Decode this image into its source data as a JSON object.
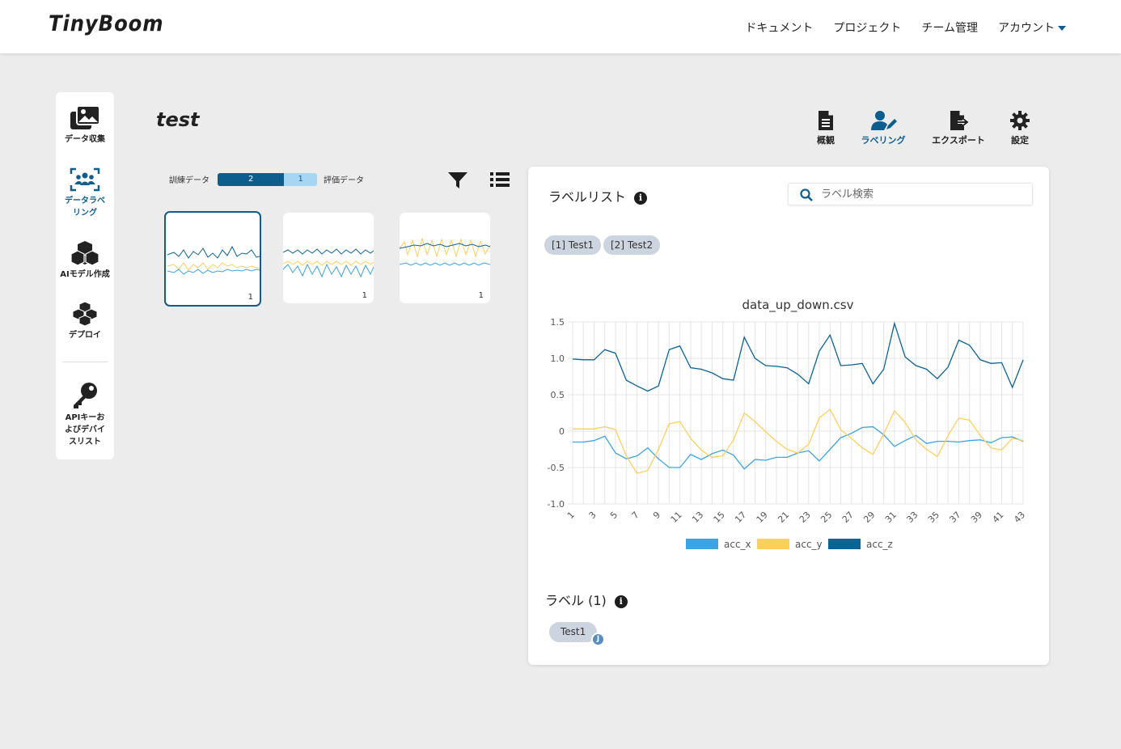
{
  "header": {
    "logo": "TinyBoom",
    "nav": [
      "ドキュメント",
      "プロジェクト",
      "チーム管理",
      "アカウント"
    ]
  },
  "sidebar": {
    "items": [
      {
        "label": "データ収集",
        "icon": "images-icon"
      },
      {
        "label": "データラベリング",
        "icon": "users-scan-icon"
      },
      {
        "label": "AIモデル作成",
        "icon": "cubes-icon"
      },
      {
        "label": "デプロイ",
        "icon": "cubes-stack-icon"
      },
      {
        "label": "APIキーおよびデバイスリスト",
        "icon": "key-icon"
      }
    ]
  },
  "project": {
    "title": "test"
  },
  "toolbar": {
    "overview": "概観",
    "labeling": "ラベリング",
    "export": "エクスポート",
    "settings": "設定"
  },
  "split": {
    "train_label": "訓練データ",
    "train_count": "2",
    "eval_count": "1",
    "eval_label": "評価データ",
    "train_fraction": 0.67
  },
  "thumbnails": [
    {
      "count": "1"
    },
    {
      "count": "1"
    },
    {
      "count": "1"
    }
  ],
  "label_list": {
    "title": "ラベルリスト",
    "search_placeholder": "ラベル検索",
    "chips": [
      "[1] Test1",
      "[2] Test2"
    ]
  },
  "labels": {
    "heading": "ラベル (1)",
    "items": [
      {
        "name": "Test1",
        "user": "J"
      }
    ]
  },
  "colors": {
    "acc_x": "#3da3e3",
    "acc_y": "#ffcf5c",
    "acc_z": "#0b6396",
    "accent": "#0d5d8e"
  },
  "chart_data": {
    "type": "line",
    "title": "data_up_down.csv",
    "x": [
      1,
      2,
      3,
      4,
      5,
      6,
      7,
      8,
      9,
      10,
      11,
      12,
      13,
      14,
      15,
      16,
      17,
      18,
      19,
      20,
      21,
      22,
      23,
      24,
      25,
      26,
      27,
      28,
      29,
      30,
      31,
      32,
      33,
      34,
      35,
      36,
      37,
      38,
      39,
      40,
      41,
      42,
      43
    ],
    "x_tick_labels": [
      "1",
      "3",
      "5",
      "7",
      "9",
      "11",
      "13",
      "15",
      "17",
      "19",
      "21",
      "23",
      "25",
      "27",
      "29",
      "31",
      "33",
      "35",
      "37",
      "39",
      "41",
      "43"
    ],
    "ylim": [
      -1.0,
      1.5
    ],
    "y_tick_labels": [
      "1.5",
      "1.0",
      "0.5",
      "0",
      "-0.5",
      "-1.0"
    ],
    "grid": true,
    "legend": "bottom",
    "series": [
      {
        "name": "acc_x",
        "values": [
          -0.15,
          -0.15,
          -0.13,
          -0.07,
          -0.3,
          -0.38,
          -0.34,
          -0.23,
          -0.38,
          -0.5,
          -0.5,
          -0.32,
          -0.39,
          -0.31,
          -0.26,
          -0.33,
          -0.52,
          -0.39,
          -0.4,
          -0.36,
          -0.36,
          -0.3,
          -0.27,
          -0.41,
          -0.25,
          -0.09,
          -0.03,
          0.05,
          0.06,
          -0.05,
          -0.21,
          -0.13,
          -0.06,
          -0.17,
          -0.14,
          -0.14,
          -0.15,
          -0.13,
          -0.12,
          -0.16,
          -0.09,
          -0.08,
          -0.14
        ]
      },
      {
        "name": "acc_y",
        "values": [
          0.03,
          0.03,
          0.03,
          0.06,
          0.02,
          -0.34,
          -0.58,
          -0.54,
          -0.25,
          0.1,
          0.13,
          -0.1,
          -0.26,
          -0.36,
          -0.34,
          -0.12,
          0.25,
          0.13,
          -0.01,
          -0.14,
          -0.25,
          -0.3,
          -0.18,
          0.18,
          0.3,
          0.02,
          -0.1,
          -0.23,
          -0.32,
          -0.04,
          0.28,
          0.12,
          -0.12,
          -0.25,
          -0.35,
          -0.06,
          0.18,
          0.15,
          -0.06,
          -0.23,
          -0.26,
          -0.1,
          -0.13
        ]
      },
      {
        "name": "acc_z",
        "values": [
          0.99,
          0.98,
          0.98,
          1.12,
          1.07,
          0.7,
          0.62,
          0.55,
          0.62,
          1.12,
          1.17,
          0.87,
          0.85,
          0.8,
          0.72,
          0.7,
          1.29,
          1.0,
          0.9,
          0.89,
          0.87,
          0.78,
          0.65,
          1.1,
          1.32,
          0.9,
          0.91,
          0.93,
          0.65,
          0.85,
          1.48,
          1.02,
          0.9,
          0.85,
          0.72,
          0.88,
          1.25,
          1.18,
          0.98,
          0.93,
          0.94,
          0.6,
          0.98
        ]
      }
    ]
  }
}
